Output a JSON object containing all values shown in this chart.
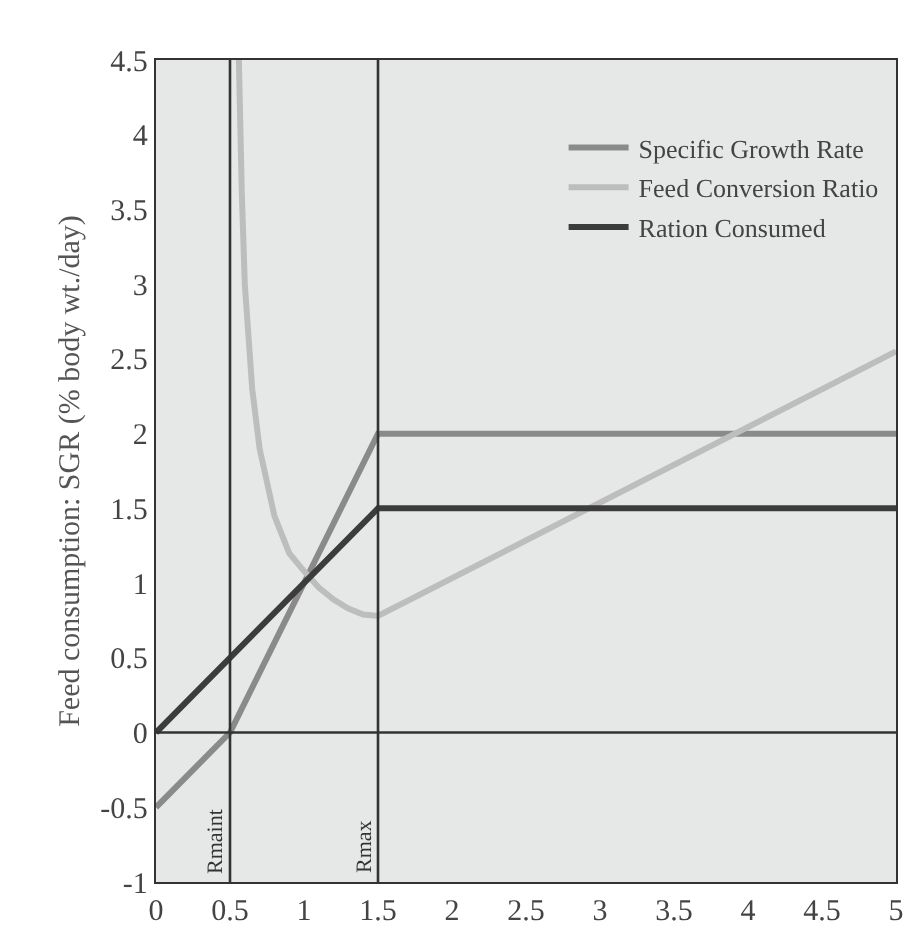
{
  "chart_data": {
    "type": "line",
    "ylabel": "Feed consumption: SGR (% body wt./day)",
    "xlim": [
      0,
      5
    ],
    "ylim": [
      -1,
      4.5
    ],
    "xticks": [
      0,
      0.5,
      1,
      1.5,
      2,
      2.5,
      3,
      3.5,
      4,
      4.5,
      5
    ],
    "yticks": [
      -1,
      -0.5,
      0,
      0.5,
      1,
      1.5,
      2,
      2.5,
      3,
      3.5,
      4,
      4.5
    ],
    "series": [
      {
        "name": "Specific Growth Rate",
        "color": "#8a8a8a",
        "x": [
          0,
          0.5,
          1.5,
          5
        ],
        "values": [
          -0.5,
          0,
          2.0,
          2.0
        ]
      },
      {
        "name": "Feed Conversion Ratio",
        "color": "#bdbdbd",
        "x": [
          0.56,
          0.58,
          0.6,
          0.65,
          0.7,
          0.8,
          0.9,
          1.0,
          1.1,
          1.2,
          1.3,
          1.4,
          1.5,
          5
        ],
        "values": [
          4.5,
          3.6,
          3.0,
          2.3,
          1.9,
          1.45,
          1.2,
          1.08,
          0.97,
          0.89,
          0.83,
          0.79,
          0.78,
          2.55
        ]
      },
      {
        "name": "Ration Consumed",
        "color": "#3c3c3c",
        "x": [
          0,
          1.5,
          5
        ],
        "values": [
          0,
          1.5,
          1.5
        ]
      }
    ],
    "ref_lines": [
      {
        "axis": "x",
        "value": 0.5,
        "label": "Rmaint",
        "color": "#333333"
      },
      {
        "axis": "x",
        "value": 1.5,
        "label": "Rmax",
        "color": "#333333"
      },
      {
        "axis": "y",
        "value": 0,
        "label": null,
        "color": "#333333"
      }
    ],
    "legend": "top right",
    "grid": false,
    "marker": "none",
    "line_style": "solid"
  }
}
